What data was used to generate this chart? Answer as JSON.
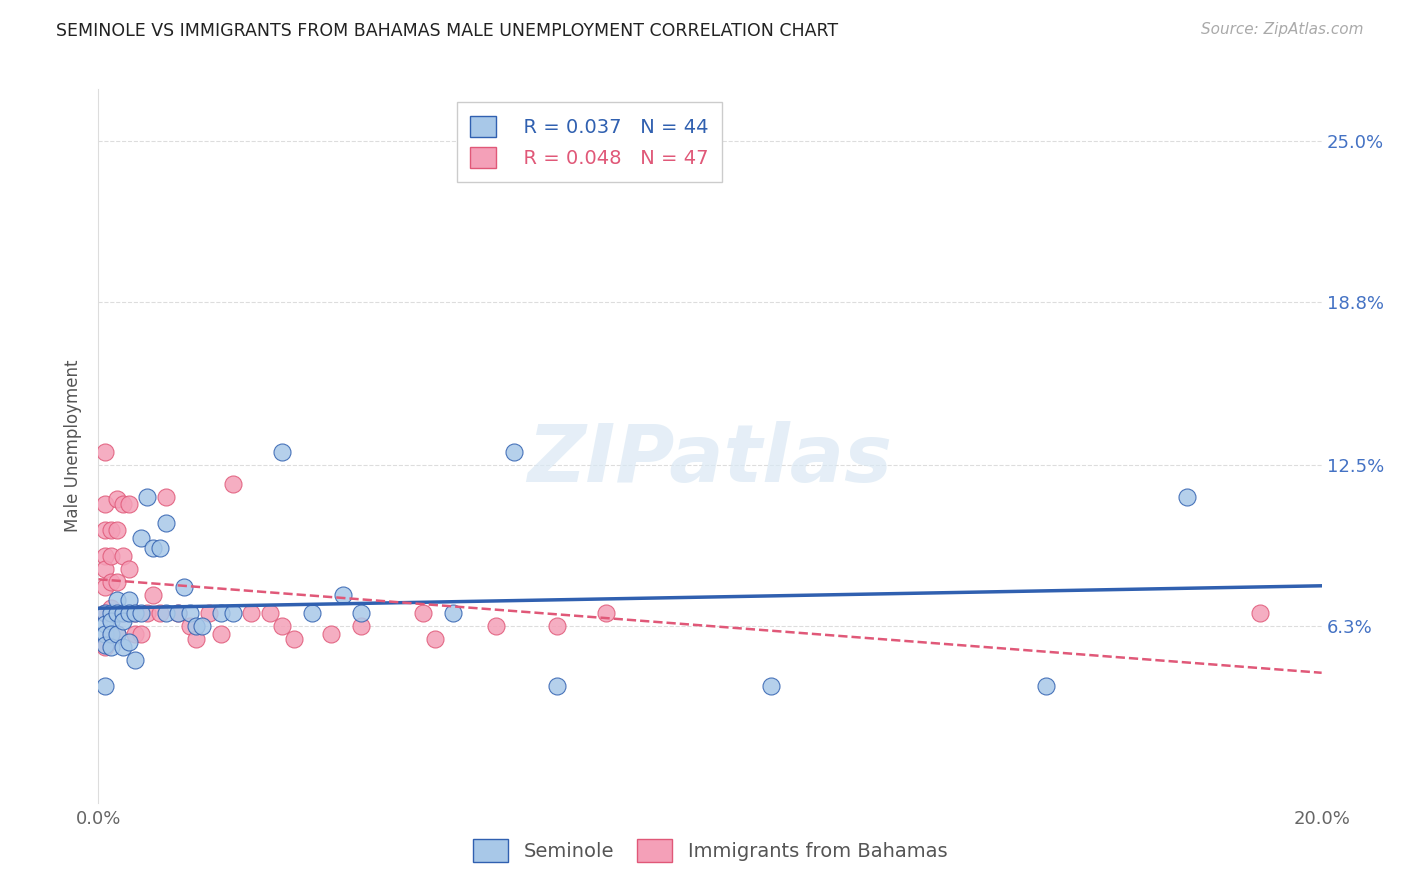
{
  "title": "SEMINOLE VS IMMIGRANTS FROM BAHAMAS MALE UNEMPLOYMENT CORRELATION CHART",
  "source": "Source: ZipAtlas.com",
  "ylabel": "Male Unemployment",
  "y_tick_labels": [
    "6.3%",
    "12.5%",
    "18.8%",
    "25.0%"
  ],
  "xlim": [
    0,
    0.2
  ],
  "ylim": [
    -0.005,
    0.27
  ],
  "y_ticks": [
    0.063,
    0.125,
    0.188,
    0.25
  ],
  "x_ticks": [
    0.0,
    0.2
  ],
  "legend_series": [
    "Seminole",
    "Immigrants from Bahamas"
  ],
  "legend_r": [
    "R = 0.037",
    "R = 0.048"
  ],
  "legend_n": [
    "N = 44",
    "N = 47"
  ],
  "seminole_color": "#a8c8e8",
  "bahamas_color": "#f4a0b8",
  "trend_seminole_color": "#3060b0",
  "trend_bahamas_color": "#e05878",
  "background_color": "#ffffff",
  "watermark": "ZIPatlas",
  "seminole_x": [
    0.001,
    0.001,
    0.001,
    0.001,
    0.001,
    0.002,
    0.002,
    0.002,
    0.002,
    0.003,
    0.003,
    0.003,
    0.004,
    0.004,
    0.004,
    0.005,
    0.005,
    0.005,
    0.006,
    0.006,
    0.007,
    0.007,
    0.008,
    0.009,
    0.01,
    0.011,
    0.011,
    0.013,
    0.014,
    0.015,
    0.016,
    0.017,
    0.02,
    0.022,
    0.03,
    0.035,
    0.04,
    0.043,
    0.058,
    0.068,
    0.075,
    0.11,
    0.155,
    0.178
  ],
  "seminole_y": [
    0.068,
    0.064,
    0.06,
    0.056,
    0.04,
    0.068,
    0.065,
    0.06,
    0.055,
    0.073,
    0.068,
    0.06,
    0.068,
    0.065,
    0.055,
    0.073,
    0.068,
    0.057,
    0.068,
    0.05,
    0.097,
    0.068,
    0.113,
    0.093,
    0.093,
    0.103,
    0.068,
    0.068,
    0.078,
    0.068,
    0.063,
    0.063,
    0.068,
    0.068,
    0.13,
    0.068,
    0.075,
    0.068,
    0.068,
    0.13,
    0.04,
    0.04,
    0.04,
    0.113
  ],
  "bahamas_x": [
    0.001,
    0.001,
    0.001,
    0.001,
    0.001,
    0.001,
    0.001,
    0.001,
    0.002,
    0.002,
    0.002,
    0.002,
    0.002,
    0.003,
    0.003,
    0.003,
    0.003,
    0.004,
    0.004,
    0.004,
    0.005,
    0.005,
    0.006,
    0.006,
    0.007,
    0.008,
    0.009,
    0.01,
    0.011,
    0.013,
    0.015,
    0.016,
    0.018,
    0.02,
    0.022,
    0.025,
    0.028,
    0.03,
    0.032,
    0.038,
    0.043,
    0.053,
    0.055,
    0.065,
    0.075,
    0.083,
    0.19
  ],
  "bahamas_y": [
    0.13,
    0.11,
    0.1,
    0.09,
    0.085,
    0.078,
    0.068,
    0.055,
    0.1,
    0.09,
    0.08,
    0.07,
    0.06,
    0.112,
    0.1,
    0.08,
    0.06,
    0.11,
    0.09,
    0.068,
    0.11,
    0.085,
    0.068,
    0.06,
    0.06,
    0.068,
    0.075,
    0.068,
    0.113,
    0.068,
    0.063,
    0.058,
    0.068,
    0.06,
    0.118,
    0.068,
    0.068,
    0.063,
    0.058,
    0.06,
    0.063,
    0.068,
    0.058,
    0.063,
    0.063,
    0.068,
    0.068
  ]
}
